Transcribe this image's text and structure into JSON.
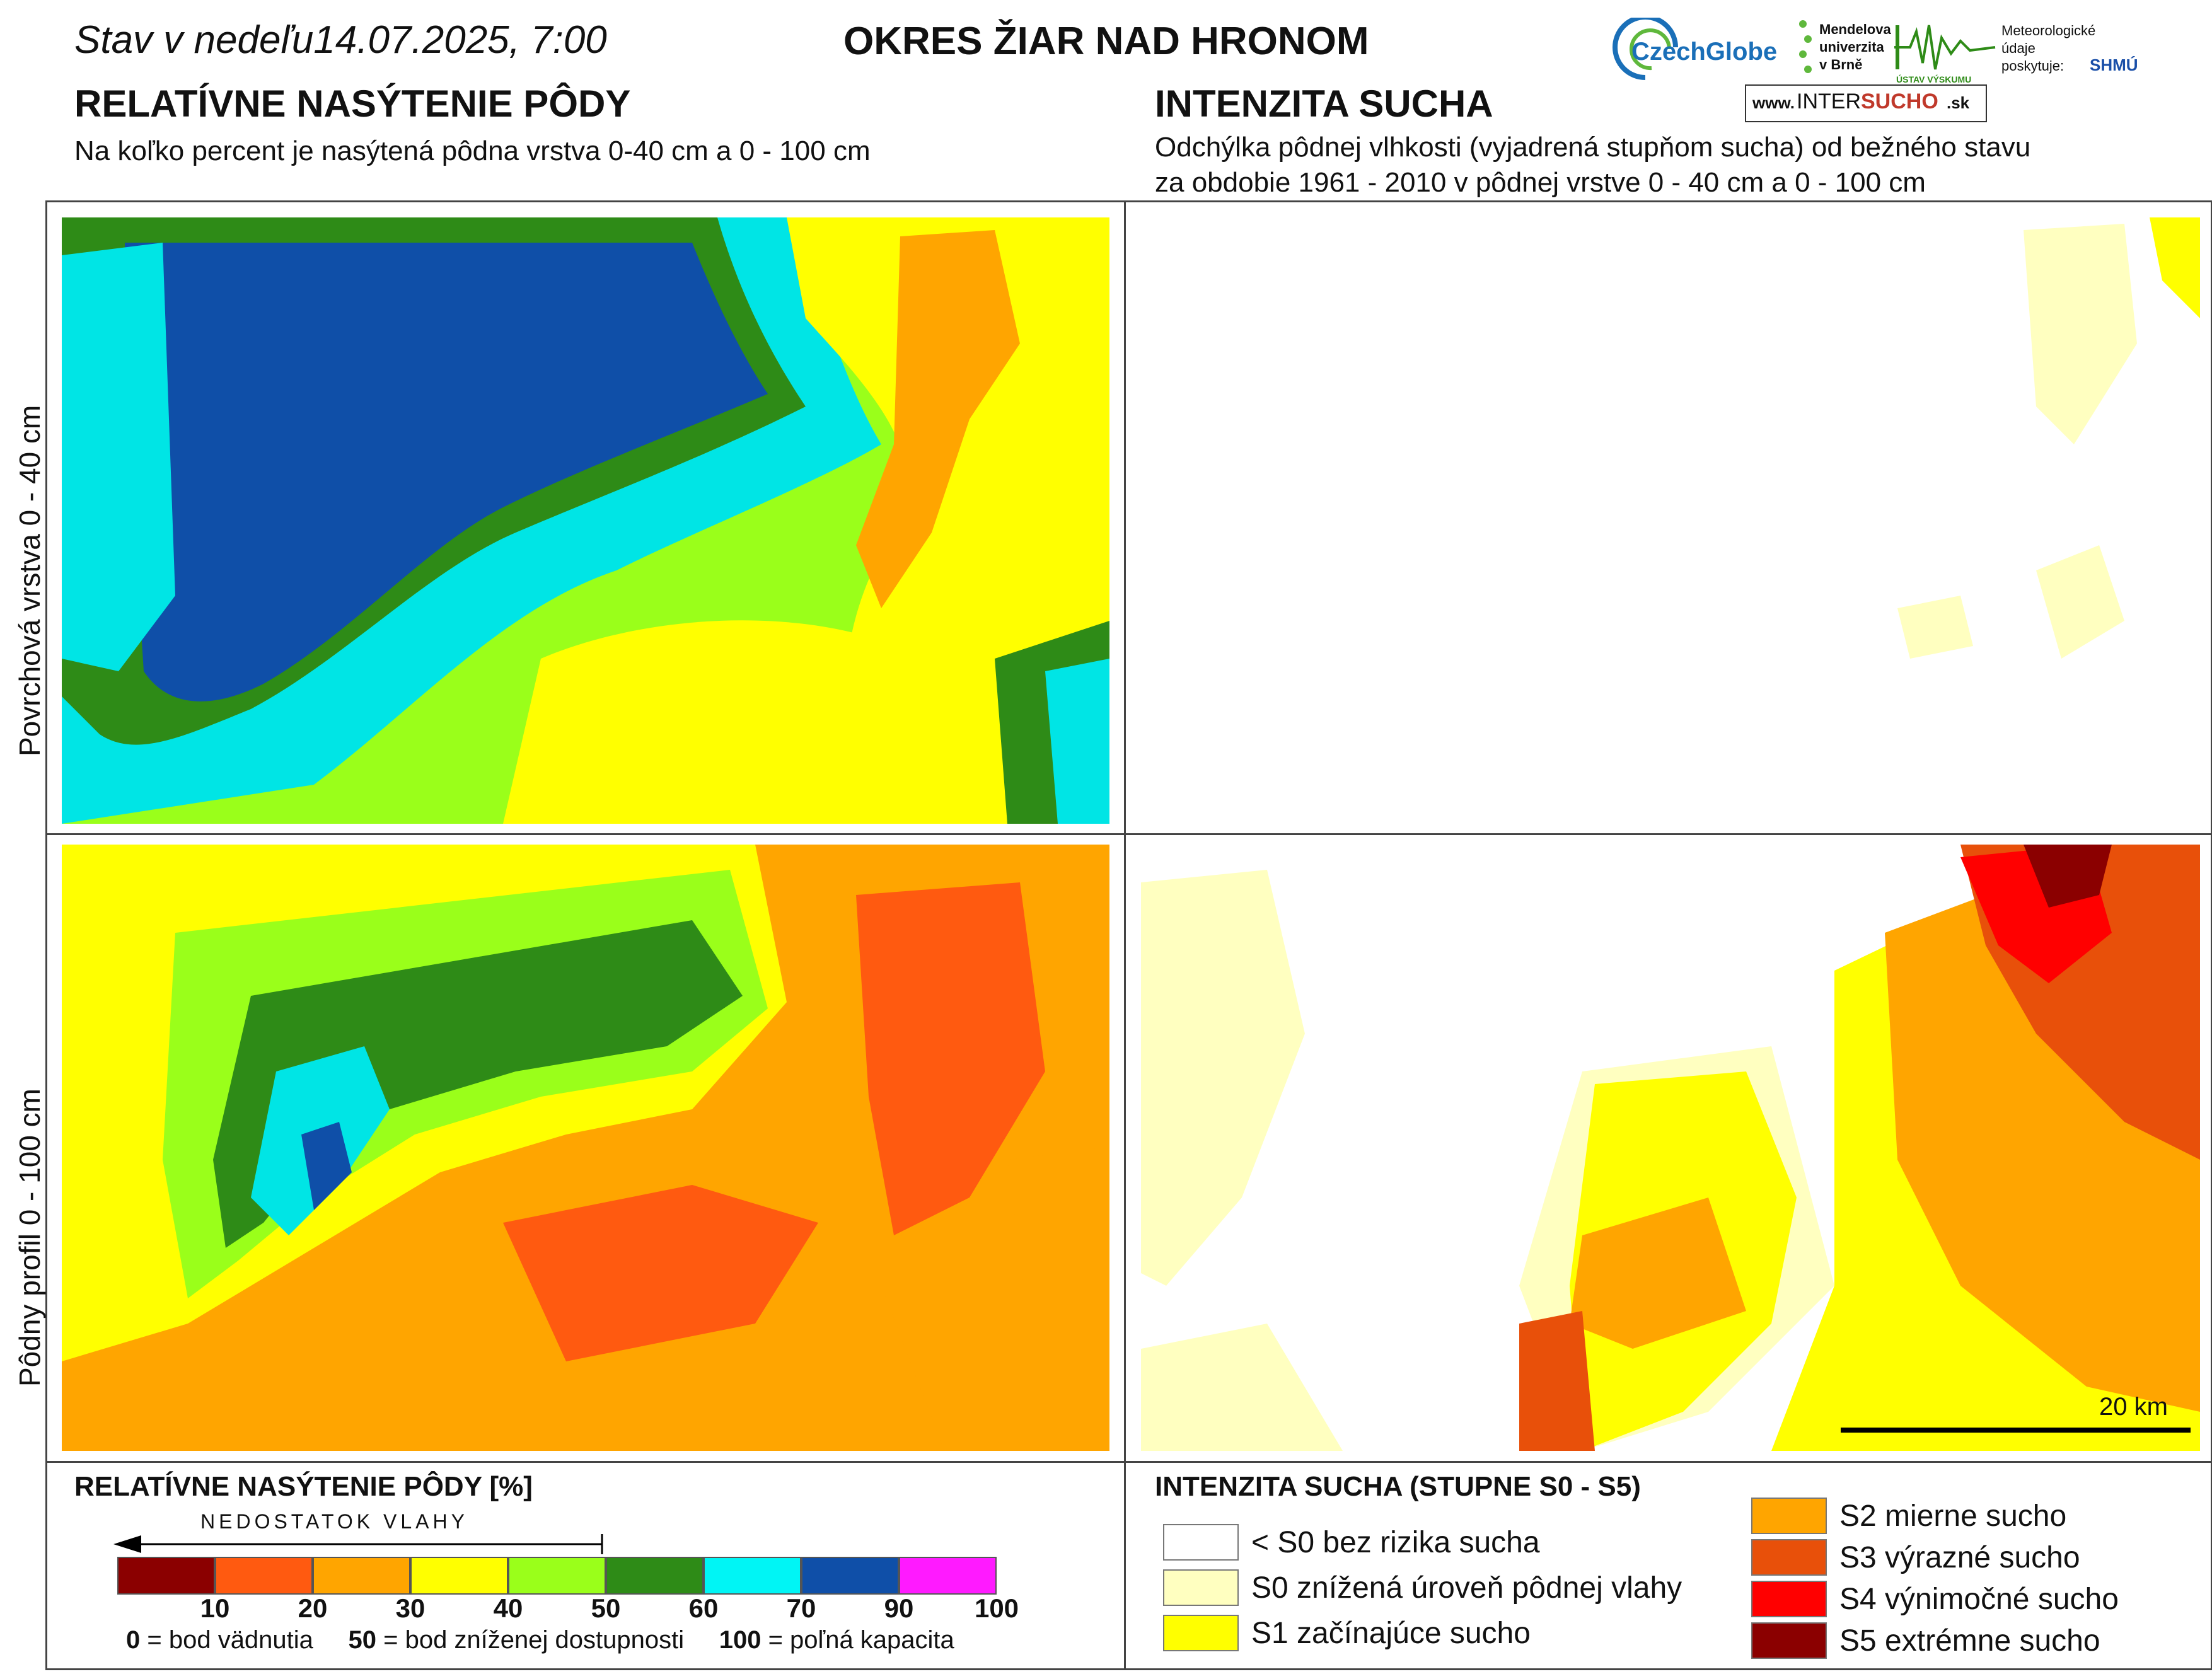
{
  "header": {
    "date_line": "Stav v nedeľu14.07.2025, 7:00",
    "region": "OKRES  ŽIAR NAD HRONOM"
  },
  "left_section": {
    "title": "RELATÍVNE NASÝTENIE PÔDY",
    "subtitle": "Na koľko percent je nasýtená pôdna vrstva 0-40 cm a 0 - 100 cm"
  },
  "right_section": {
    "title": "INTENZITA SUCHA",
    "subtitle_line1": "Odchýlka pôdnej vlhkosti (vyjadrená stupňom sucha) od bežného stavu",
    "subtitle_line2": "za obdobie 1961 - 2010 v pôdnej vrstve 0 - 40 cm a 0 - 100 cm"
  },
  "row_labels": {
    "top": "Povrchová vrstva 0 - 40 cm",
    "bottom": "Pôdny profil 0 - 100 cm"
  },
  "logos": {
    "czechglobe": "CzechGlobe",
    "mendelu_line1": "Mendelova",
    "mendelu_line2": "univerzita",
    "mendelu_line3": "v Brně",
    "ustav": "ÚSTAV VÝSKUMU ZEMĚ",
    "meteo_line1": "Meteorologické",
    "meteo_line2": "údaje",
    "meteo_line3": "poskytuje:",
    "shmu": "SHMÚ",
    "intersucho_prefix": "www.",
    "intersucho_inter": "INTER",
    "intersucho_sucho": "SUCHO",
    "intersucho_suffix": ".sk"
  },
  "scale_bar": {
    "label": "20 km"
  },
  "saturation_legend": {
    "title": "RELATÍVNE NASÝTENIE PÔDY [%]",
    "arrow_label": "NEDOSTATOK VLAHY",
    "bins": [
      {
        "color": "#8b0000",
        "upper": "10"
      },
      {
        "color": "#ff5a10",
        "upper": "20"
      },
      {
        "color": "#ffa500",
        "upper": "30"
      },
      {
        "color": "#ffff00",
        "upper": "40"
      },
      {
        "color": "#9aff1a",
        "upper": "50"
      },
      {
        "color": "#2e8b17",
        "upper": "60"
      },
      {
        "color": "#00f5f5",
        "upper": "70"
      },
      {
        "color": "#0f4fa8",
        "upper": "90"
      },
      {
        "color": "#ff1aff",
        "upper": "100"
      }
    ],
    "note_0_value": "0",
    "note_0_text": " = bod vädnutia",
    "note_50_value": "50",
    "note_50_text": " = bod zníženej dostupnosti",
    "note_100_value": "100",
    "note_100_text": " = poľná kapacita"
  },
  "drought_legend": {
    "title": "INTENZITA SUCHA (STUPNE S0 - S5)",
    "items": [
      {
        "color": "#ffffff",
        "label": "< S0 bez rizika sucha"
      },
      {
        "color": "#ffffc0",
        "label": "S0 znížená úroveň pôdnej vlahy"
      },
      {
        "color": "#ffff00",
        "label": "S1 začínajúce sucho"
      },
      {
        "color": "#ffa500",
        "label": "S2 mierne sucho"
      },
      {
        "color": "#e8500a",
        "label": "S3 výrazné sucho"
      },
      {
        "color": "#ff0000",
        "label": "S4 výnimočné sucho"
      },
      {
        "color": "#8b0000",
        "label": "S5 extrémne sucho"
      }
    ]
  },
  "colors": {
    "river": "#1e90ff",
    "district_border": "#000000",
    "town": "#444444",
    "municipal_border": "#7a7a7a"
  }
}
